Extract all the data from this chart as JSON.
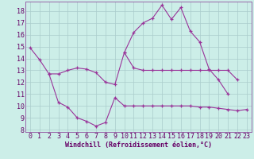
{
  "xlabel": "Windchill (Refroidissement éolien,°C)",
  "background_color": "#cceee8",
  "grid_color": "#aacccc",
  "line_color": "#993399",
  "spine_color": "#9966aa",
  "xlim_min": -0.5,
  "xlim_max": 23.5,
  "ylim_min": 7.8,
  "ylim_max": 18.8,
  "yticks": [
    8,
    9,
    10,
    11,
    12,
    13,
    14,
    15,
    16,
    17,
    18
  ],
  "xticks": [
    0,
    1,
    2,
    3,
    4,
    5,
    6,
    7,
    8,
    9,
    10,
    11,
    12,
    13,
    14,
    15,
    16,
    17,
    18,
    19,
    20,
    21,
    22,
    23
  ],
  "line1_x": [
    0,
    1,
    2,
    3,
    4,
    5,
    6,
    7,
    8,
    9,
    10,
    11,
    12,
    13,
    14,
    15,
    16,
    17,
    18,
    19,
    20,
    21
  ],
  "line1_y": [
    14.9,
    13.9,
    12.7,
    12.7,
    13.0,
    13.2,
    13.1,
    12.8,
    12.0,
    11.8,
    14.5,
    16.2,
    17.0,
    17.4,
    18.5,
    17.3,
    18.3,
    16.3,
    15.4,
    13.1,
    12.2,
    11.0
  ],
  "line2_x": [
    2,
    3,
    4,
    5,
    6,
    7,
    8,
    9,
    10,
    11,
    12,
    13,
    14,
    15,
    16,
    17,
    18,
    19,
    20,
    21,
    22,
    23
  ],
  "line2_y": [
    12.7,
    10.3,
    9.9,
    9.0,
    8.7,
    8.3,
    8.6,
    10.7,
    10.0,
    10.0,
    10.0,
    10.0,
    10.0,
    10.0,
    10.0,
    10.0,
    9.9,
    9.9,
    9.8,
    9.7,
    9.6,
    9.7
  ],
  "line3_x": [
    10,
    11,
    12,
    13,
    14,
    15,
    16,
    17,
    18,
    19,
    20,
    21,
    22
  ],
  "line3_y": [
    14.5,
    13.2,
    13.0,
    13.0,
    13.0,
    13.0,
    13.0,
    13.0,
    13.0,
    13.0,
    13.0,
    13.0,
    12.2
  ],
  "tick_fontsize": 6.0,
  "xlabel_fontsize": 6.0
}
